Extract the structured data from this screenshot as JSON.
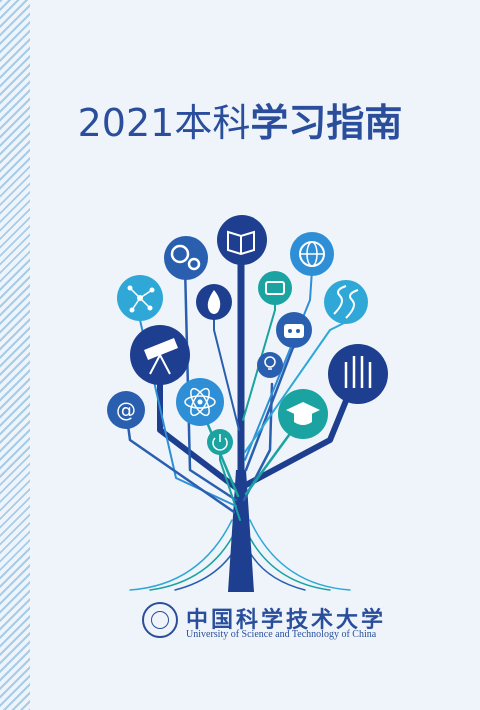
{
  "cover": {
    "title_year": "2021",
    "title_part1": "本科",
    "title_part2": "学习指南"
  },
  "university": {
    "name_cn": "中国科学技术大学",
    "name_en": "University of Science and Technology of China"
  },
  "colors": {
    "navy": "#1e3f8f",
    "blue": "#2a5fb0",
    "light_blue": "#2f8fd6",
    "teal": "#1aa3a0",
    "background": "#eef4fa"
  },
  "icons": [
    "book-icon",
    "settings-gears-icon",
    "globe-icon",
    "molecule-icon",
    "flame-icon",
    "tablet-icon",
    "dna-icon",
    "robot-icon",
    "telescope-icon",
    "light-bulb-icon",
    "server-icon",
    "at-sign-icon",
    "atom-icon",
    "graduation-cap-icon",
    "power-icon"
  ]
}
